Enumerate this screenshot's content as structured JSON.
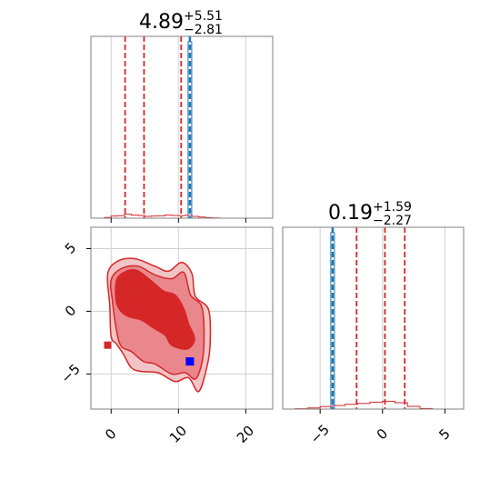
{
  "chart_data": [
    {
      "type": "histogram",
      "panel": "top-left",
      "title": {
        "median": "4.89",
        "plus": "+5.51",
        "minus": "−2.81"
      },
      "xlim": [
        -3,
        24
      ],
      "ylim": [
        0,
        1
      ],
      "xticks": [
        0,
        10,
        20
      ],
      "x_tick_labels_shown": false,
      "grid": true,
      "quantile_lines": [
        2.08,
        4.89,
        10.4
      ],
      "quantile_color": "#d62728",
      "truth_value": 11.7,
      "truth_color": "#1f77b4",
      "hist_color": "#d62728",
      "hist": {
        "x": [
          -0.5,
          0.5,
          1.5,
          2.5,
          3.5,
          4.5,
          5.5,
          6.5,
          7.5,
          8.5,
          9.5,
          10.5,
          11.5,
          12.5,
          13.5,
          14.5,
          15.5
        ],
        "y": [
          0.004,
          0.012,
          0.014,
          0.022,
          0.017,
          0.015,
          0.01,
          0.012,
          0.013,
          0.017,
          0.015,
          0.014,
          0.016,
          0.01,
          0.006,
          0.003,
          0.001
        ]
      },
      "truth_hist": {
        "x": [
          11.7
        ],
        "y": [
          0.97
        ]
      }
    },
    {
      "type": "scatter_contour",
      "panel": "bottom-left",
      "xlim": [
        -3,
        24
      ],
      "ylim": [
        -7.8,
        6.7
      ],
      "xticks": [
        0,
        10,
        20
      ],
      "xtick_labels": [
        "0",
        "10",
        "20"
      ],
      "yticks": [
        5,
        0,
        -5
      ],
      "ytick_labels": [
        "5",
        "0",
        "−5"
      ],
      "grid": true,
      "contour_color": "#d62728",
      "levels": [
        {
          "fill": "#f2c4c6",
          "points": [
            [
              -0.2,
              0.5
            ],
            [
              -0.5,
              3
            ],
            [
              1,
              4
            ],
            [
              3.5,
              4.2
            ],
            [
              6.5,
              3.6
            ],
            [
              8.5,
              3.2
            ],
            [
              10.5,
              3.9
            ],
            [
              12,
              3
            ],
            [
              12.5,
              1.2
            ],
            [
              14.5,
              0.1
            ],
            [
              14.7,
              -2.7
            ],
            [
              14.2,
              -4.5
            ],
            [
              13,
              -6.4
            ],
            [
              11.5,
              -5.3
            ],
            [
              9.5,
              -5.6
            ],
            [
              7,
              -4.9
            ],
            [
              4.5,
              -4.8
            ],
            [
              3,
              -4.5
            ],
            [
              1.8,
              -3.4
            ],
            [
              0.8,
              -2.6
            ],
            [
              0,
              -2
            ]
          ]
        },
        {
          "fill": "#e9878c",
          "points": [
            [
              0.2,
              0.8
            ],
            [
              0,
              2.5
            ],
            [
              1.5,
              3.4
            ],
            [
              4,
              3.6
            ],
            [
              6.5,
              2.9
            ],
            [
              9,
              2.6
            ],
            [
              10.8,
              3.1
            ],
            [
              11.8,
              1.3
            ],
            [
              13.5,
              0.3
            ],
            [
              13.8,
              -2.5
            ],
            [
              13.4,
              -4.3
            ],
            [
              12.5,
              -5.4
            ],
            [
              11,
              -4.9
            ],
            [
              9,
              -5
            ],
            [
              6.5,
              -4.2
            ],
            [
              4.8,
              -4
            ],
            [
              3,
              -3.2
            ],
            [
              1.5,
              -2.8
            ],
            [
              0.8,
              -1.5
            ]
          ]
        },
        {
          "fill": "#d62728",
          "points": [
            [
              0.7,
              1
            ],
            [
              1,
              2.7
            ],
            [
              3.5,
              3.3
            ],
            [
              6,
              2.4
            ],
            [
              7.8,
              1.6
            ],
            [
              9.5,
              1.3
            ],
            [
              10.8,
              0.2
            ],
            [
              11.5,
              -1
            ],
            [
              12.4,
              -2.2
            ],
            [
              11.3,
              -3
            ],
            [
              9,
              -2.7
            ],
            [
              8,
              -1.9
            ],
            [
              6.2,
              -1.3
            ],
            [
              4.5,
              -0.7
            ],
            [
              2.5,
              -0.4
            ],
            [
              1.3,
              0.1
            ]
          ]
        }
      ],
      "points": [
        [
          2.9,
          1.0
        ],
        [
          8.6,
          -1.2
        ],
        [
          9.0,
          -1.0
        ],
        [
          8.8,
          -1.4
        ],
        [
          -0.5,
          -2.7
        ]
      ],
      "truth_point": [
        11.7,
        -4.0
      ],
      "truth_color": "#0000ff"
    },
    {
      "type": "histogram",
      "panel": "bottom-right",
      "title": {
        "median": "0.19",
        "plus": "+1.59",
        "minus": "−2.27"
      },
      "xlim": [
        -8,
        6.5
      ],
      "ylim": [
        0,
        1
      ],
      "xticks": [
        -5,
        0,
        5
      ],
      "xtick_labels": [
        "−5",
        "0",
        "5"
      ],
      "grid": true,
      "quantile_lines": [
        -2.08,
        0.19,
        1.78
      ],
      "quantile_color": "#d62728",
      "truth_value": -4.0,
      "truth_color": "#1f77b4",
      "hist_color": "#d62728",
      "hist": {
        "x": [
          -6.5,
          -5.5,
          -4.5,
          -3.5,
          -2.5,
          -1.5,
          -0.5,
          0.5,
          1.5,
          2.5,
          3.5
        ],
        "y": [
          0.002,
          0.006,
          0.014,
          0.02,
          0.026,
          0.031,
          0.038,
          0.043,
          0.035,
          0.015,
          0.003
        ]
      },
      "truth_hist": {
        "x": [
          -4.0
        ],
        "y": [
          0.97
        ]
      }
    }
  ]
}
